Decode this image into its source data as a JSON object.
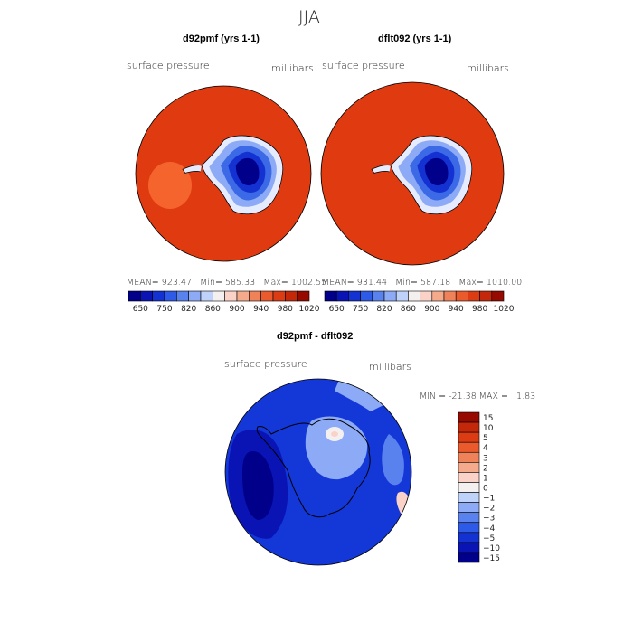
{
  "season": "JJA",
  "panels": [
    {
      "title": "d92pmf (yrs 1-1)",
      "variable": "surface pressure",
      "units": "millibars",
      "stats": {
        "mean_label": "MEAN=",
        "mean": "923.47",
        "min_label": "Min=",
        "min": "585.33",
        "max_label": "Max=",
        "max": "1002.55"
      },
      "background_color": "#e03a10",
      "outer_color": "#c52e0c"
    },
    {
      "title": "dflt092 (yrs 1-1)",
      "variable": "surface pressure",
      "units": "millibars",
      "stats": {
        "mean_label": "MEAN=",
        "mean": "931.44",
        "min_label": "Min=",
        "min": "587.18",
        "max_label": "Max=",
        "max": "1010.00"
      },
      "background_color": "#e03a10",
      "outer_color": "#b82a0a"
    }
  ],
  "abs_colorbar": {
    "colors": [
      "#00008a",
      "#0a14b4",
      "#1432d2",
      "#2d5ae6",
      "#5a82ee",
      "#8caaf5",
      "#bed2fa",
      "#f5f0f0",
      "#fad2c8",
      "#f5aa8c",
      "#f0825a",
      "#eb5a2d",
      "#dc3c14",
      "#c3280a",
      "#960a00"
    ],
    "tick_labels": [
      "650",
      "750",
      "820",
      "860",
      "900",
      "940",
      "980",
      "1020"
    ]
  },
  "diff_panel": {
    "title": "d92pmf - dflt092",
    "variable": "surface pressure",
    "units": "millibars",
    "min_label": "MIN =",
    "min": "-21.38",
    "max_label": "MAX =",
    "max": "1.83",
    "background_color": "#1438d8"
  },
  "diff_colorbar": {
    "colors": [
      "#960a00",
      "#c3280a",
      "#dc3c14",
      "#eb5a2d",
      "#f0825a",
      "#f5aa8c",
      "#fad2c8",
      "#f5f0f0",
      "#bed2fa",
      "#8caaf5",
      "#5a82ee",
      "#2d5ae6",
      "#1432d2",
      "#0a14b4",
      "#00008a"
    ],
    "labels": [
      "15",
      "10",
      "5",
      "4",
      "3",
      "2",
      "1",
      "0",
      "−1",
      "−2",
      "−3",
      "−4",
      "−5",
      "−10",
      "−15"
    ]
  },
  "antarctica_colors": {
    "coast": "#e6ecff",
    "ring1": "#8caaf5",
    "ring2": "#3c6ae6",
    "ring3": "#1432d2",
    "core": "#00008a"
  }
}
